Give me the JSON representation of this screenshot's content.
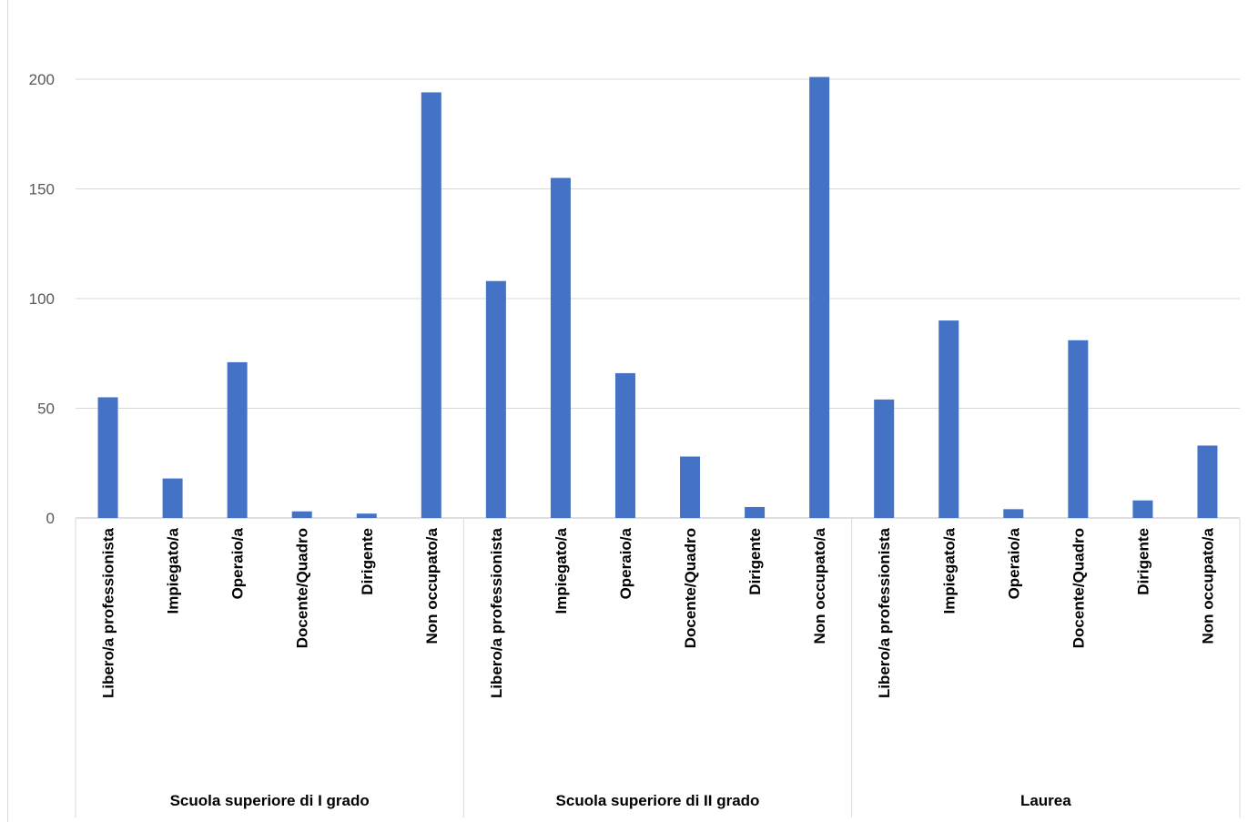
{
  "chart_data": {
    "type": "bar",
    "title": "",
    "xlabel": "",
    "ylabel": "",
    "ylim": [
      0,
      220
    ],
    "yticks": [
      0,
      50,
      100,
      150,
      200
    ],
    "grid": true,
    "legend": "none",
    "bar_color": "#4472C4",
    "groups": [
      {
        "name": "Scuola superiore di I grado",
        "categories": [
          "Libero/a professionista",
          "Impiegato/a",
          "Operaio/a",
          "Docente/Quadro",
          "Dirigente",
          "Non occupato/a"
        ],
        "values": [
          55,
          18,
          71,
          3,
          2,
          194
        ]
      },
      {
        "name": "Scuola superiore di II grado",
        "categories": [
          "Libero/a professionista",
          "Impiegato/a",
          "Operaio/a",
          "Docente/Quadro",
          "Dirigente",
          "Non occupato/a"
        ],
        "values": [
          108,
          155,
          66,
          28,
          5,
          201
        ]
      },
      {
        "name": "Laurea",
        "categories": [
          "Libero/a professionista",
          "Impiegato/a",
          "Operaio/a",
          "Docente/Quadro",
          "Dirigente",
          "Non occupato/a"
        ],
        "values": [
          54,
          90,
          4,
          81,
          8,
          33
        ]
      }
    ]
  }
}
